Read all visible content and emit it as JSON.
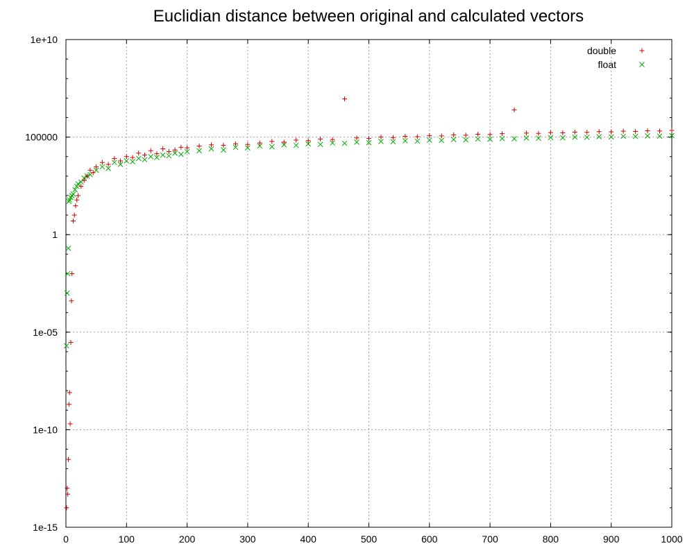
{
  "chart_data": {
    "type": "scatter",
    "title": "Euclidian distance between original and calculated vectors",
    "xlabel": "",
    "ylabel": "",
    "xlim": [
      0,
      1000
    ],
    "ylim": [
      1e-15,
      10000000000.0
    ],
    "yscale": "log",
    "grid": true,
    "legend_position": "top-right",
    "x_ticks": [
      "0",
      "100",
      "200",
      "300",
      "400",
      "500",
      "600",
      "700",
      "800",
      "900",
      "1000"
    ],
    "y_ticks": [
      "1e-15",
      "1e-10",
      "1e-05",
      "1",
      "100000",
      "1e+10"
    ],
    "series": [
      {
        "name": "double",
        "marker": "+",
        "color": "#cc0000",
        "x": [
          1,
          2,
          3,
          4,
          5,
          6,
          7,
          8,
          9,
          10,
          12,
          14,
          16,
          18,
          20,
          25,
          30,
          35,
          40,
          45,
          50,
          60,
          70,
          80,
          90,
          100,
          110,
          120,
          130,
          140,
          150,
          160,
          170,
          180,
          190,
          200,
          220,
          240,
          260,
          280,
          300,
          320,
          340,
          360,
          380,
          400,
          420,
          440,
          460,
          480,
          500,
          520,
          540,
          560,
          580,
          600,
          620,
          640,
          660,
          680,
          700,
          720,
          740,
          760,
          780,
          800,
          820,
          840,
          860,
          880,
          900,
          920,
          940,
          960,
          980,
          1000
        ],
        "y": [
          1e-14,
          1e-13,
          5e-14,
          3e-12,
          2e-09,
          8e-09,
          2e-10,
          3e-06,
          0.0004,
          0.01,
          5,
          10,
          30,
          60,
          100,
          300,
          600,
          1000,
          2000,
          1500,
          3000,
          5000,
          4000,
          8000,
          6000,
          10000,
          9000,
          15000,
          12000,
          20000,
          14000,
          25000,
          18000,
          22000,
          30000,
          28000,
          35000,
          40000,
          38000,
          45000,
          42000,
          50000,
          60000,
          55000,
          70000,
          65000,
          80000,
          75000,
          9000000,
          90000,
          85000,
          100000,
          95000,
          110000,
          105000,
          120000,
          115000,
          130000,
          125000,
          140000,
          135000,
          150000,
          2500000,
          160000,
          155000,
          170000,
          165000,
          180000,
          175000,
          190000,
          185000,
          200000,
          195000,
          210000,
          205000,
          220000
        ]
      },
      {
        "name": "float",
        "marker": "x",
        "color": "#00aa00",
        "x": [
          1,
          2,
          3,
          4,
          5,
          6,
          8,
          10,
          12,
          15,
          18,
          20,
          25,
          30,
          35,
          40,
          50,
          60,
          70,
          80,
          90,
          100,
          110,
          120,
          130,
          140,
          150,
          160,
          170,
          180,
          190,
          200,
          220,
          240,
          260,
          280,
          300,
          320,
          340,
          360,
          380,
          400,
          420,
          440,
          460,
          480,
          500,
          520,
          540,
          560,
          580,
          600,
          620,
          640,
          660,
          680,
          700,
          720,
          740,
          760,
          780,
          800,
          820,
          840,
          860,
          880,
          900,
          920,
          940,
          960,
          980,
          1000
        ],
        "y": [
          2e-06,
          0.001,
          0.01,
          0.2,
          50,
          60,
          80,
          100,
          120,
          200,
          300,
          400,
          500,
          800,
          1000,
          1200,
          2000,
          3000,
          2500,
          5000,
          4000,
          6000,
          5500,
          8000,
          7000,
          10000,
          9000,
          12000,
          11000,
          15000,
          13000,
          18000,
          20000,
          25000,
          22000,
          30000,
          28000,
          35000,
          32000,
          40000,
          38000,
          45000,
          42000,
          50000,
          48000,
          55000,
          52000,
          60000,
          58000,
          65000,
          62000,
          70000,
          68000,
          75000,
          72000,
          80000,
          78000,
          85000,
          82000,
          90000,
          88000,
          95000,
          92000,
          100000,
          98000,
          105000,
          102000,
          110000,
          108000,
          115000,
          112000,
          120000
        ]
      }
    ]
  }
}
